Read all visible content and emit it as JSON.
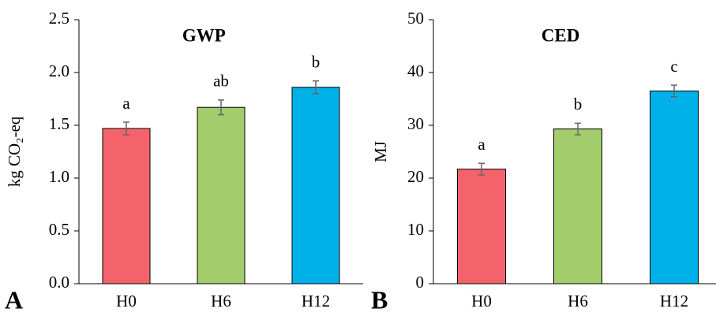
{
  "chart_data": [
    {
      "type": "bar",
      "panel_label": "A",
      "title": "GWP",
      "ylabel": "kg CO₂-eq",
      "categories": [
        "H0",
        "H6",
        "H12"
      ],
      "values": [
        1.47,
        1.67,
        1.86
      ],
      "errors": [
        0.06,
        0.07,
        0.06
      ],
      "annotations": [
        "a",
        "ab",
        "b"
      ],
      "colors": [
        "#f4636b",
        "#a3cc6b",
        "#00b0e8"
      ],
      "ylim": [
        0,
        2.5
      ],
      "yticks": [
        {
          "value": 0,
          "label": "0.0"
        },
        0.5,
        {
          "value": 1,
          "label": "1.0"
        },
        1.5,
        {
          "value": 2,
          "label": "2.0"
        },
        2.5
      ]
    },
    {
      "type": "bar",
      "panel_label": "B",
      "title": "CED",
      "ylabel": "MJ",
      "categories": [
        "H0",
        "H6",
        "H12"
      ],
      "values": [
        21.7,
        29.3,
        36.5
      ],
      "errors": [
        1.1,
        1.1,
        1.1
      ],
      "annotations": [
        "a",
        "b",
        "c"
      ],
      "colors": [
        "#f4636b",
        "#a3cc6b",
        "#00b0e8"
      ],
      "ylim": [
        0,
        50
      ],
      "yticks": [
        0,
        10,
        20,
        30,
        40,
        50
      ]
    }
  ]
}
